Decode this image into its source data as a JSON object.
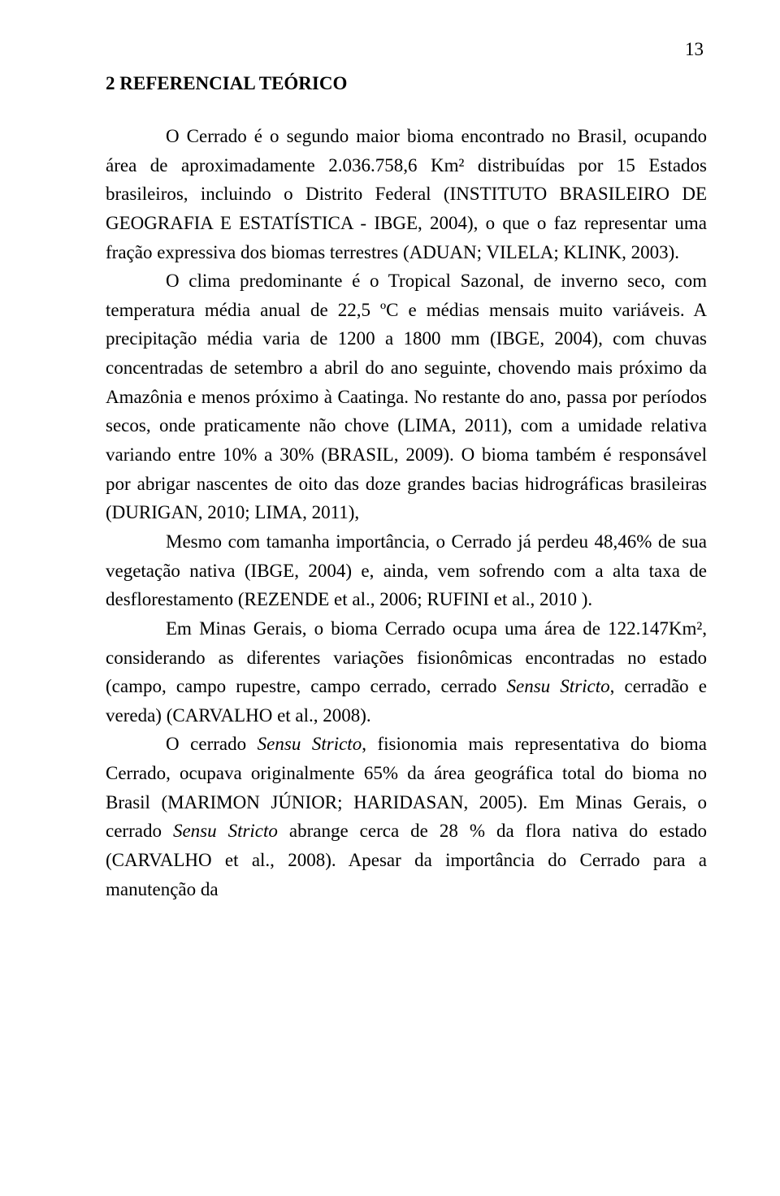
{
  "page_number": "13",
  "heading": "2 REFERENCIAL TEÓRICO",
  "p1": "O Cerrado é o segundo maior bioma encontrado no Brasil, ocupando área de aproximadamente 2.036.758,6 Km² distribuídas por 15 Estados brasileiros, incluindo o Distrito Federal (INSTITUTO BRASILEIRO DE GEOGRAFIA E ESTATÍSTICA - IBGE, 2004), o que o faz representar uma fração expressiva dos biomas terrestres (ADUAN; VILELA; KLINK, 2003).",
  "p2_a": "O clima predominante é o Tropical Sazonal, de inverno seco, com temperatura média anual de 22,5 ºC e médias mensais muito variáveis. A precipitação média varia de 1200 a 1800 mm (IBGE, 2004), com chuvas concentradas de setembro a abril do ano seguinte, chovendo mais próximo da Amazônia e menos próximo à Caatinga. No restante do ano, passa por períodos secos, onde praticamente não chove (LIMA, 2011), com a umidade relativa variando entre 10% a 30% (BRASIL, 2009). O bioma também é responsável por abrigar nascentes de oito das doze grandes bacias hidrográficas brasileiras (DURIGAN, 2010; LIMA, 2011),",
  "p3": "Mesmo com tamanha importância, o Cerrado já perdeu 48,46% de sua vegetação nativa (IBGE, 2004) e, ainda, vem sofrendo com a alta taxa de desflorestamento (REZENDE et al., 2006; RUFINI et al., 2010 ).",
  "p4_a": "Em Minas Gerais, o bioma Cerrado ocupa uma área de 122.147Km², considerando as diferentes variações fisionômicas encontradas no estado (campo, campo rupestre, campo cerrado, cerrado ",
  "p4_i1": "Sensu Stricto",
  "p4_b": ", cerradão e vereda) (CARVALHO et al., 2008).",
  "p5_a": "O cerrado ",
  "p5_i1": "Sensu Stricto",
  "p5_b": ", fisionomia mais representativa do bioma Cerrado, ocupava originalmente 65% da área geográfica total do bioma no Brasil (MARIMON JÚNIOR; HARIDASAN, 2005). Em Minas Gerais, o cerrado ",
  "p5_i2": "Sensu Stricto",
  "p5_c": " abrange cerca de 28 % da flora nativa do estado (CARVALHO et al., 2008). Apesar da importância do Cerrado para a manutenção da"
}
